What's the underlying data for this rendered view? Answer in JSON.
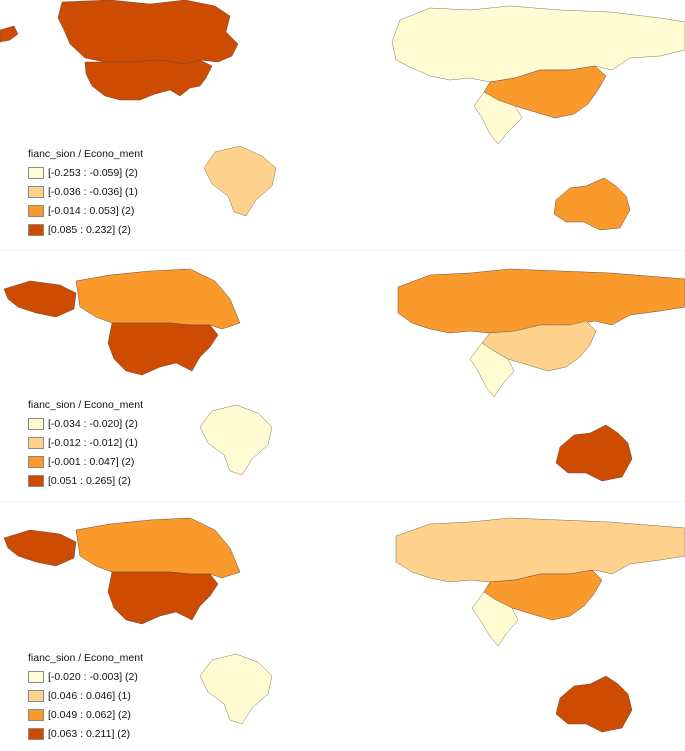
{
  "panels": [
    {
      "legend": {
        "title": "fianc_sion / Econo_ment",
        "classes": [
          {
            "label": "[-0.253 : -0.059] (2)",
            "color": "#fffbd3"
          },
          {
            "label": "[-0.036 : -0.036] (1)",
            "color": "#fed28c"
          },
          {
            "label": "[-0.014 : 0.053] (2)",
            "color": "#fb9a2c"
          },
          {
            "label": "[0.085 : 0.232] (2)",
            "color": "#cd4c02"
          }
        ]
      },
      "regions": {
        "canada": "#cd4c02",
        "usa": "#cd4c02",
        "alaska": "#cd4c02",
        "russia": "#fffbd3",
        "china": "#fb9a2c",
        "india": "#fffbd3",
        "brazil": "#fed28c",
        "australia": "#fb9a2c"
      }
    },
    {
      "legend": {
        "title": "fianc_sion / Econo_ment",
        "classes": [
          {
            "label": "[-0.034 : -0.020] (2)",
            "color": "#fffbd3"
          },
          {
            "label": "[-0.012 : -0.012] (1)",
            "color": "#fed28c"
          },
          {
            "label": "[-0.001 : 0.047] (2)",
            "color": "#fb9a2c"
          },
          {
            "label": "[0.051 : 0.265] (2)",
            "color": "#cd4c02"
          }
        ]
      },
      "regions": {
        "canada": "#fb9a2c",
        "usa": "#cd4c02",
        "alaska": "#cd4c02",
        "russia": "#fb9a2c",
        "china": "#fed28c",
        "india": "#fffbd3",
        "brazil": "#fffbd3",
        "australia": "#cd4c02"
      }
    },
    {
      "legend": {
        "title": "fianc_sion / Econo_ment",
        "classes": [
          {
            "label": "[-0.020 : -0.003] (2)",
            "color": "#fffbd3"
          },
          {
            "label": "[0.046 : 0.046] (1)",
            "color": "#fed28c"
          },
          {
            "label": "[0.049 : 0.062] (2)",
            "color": "#fb9a2c"
          },
          {
            "label": "[0.063 : 0.211] (2)",
            "color": "#cd4c02"
          }
        ]
      },
      "regions": {
        "canada": "#fb9a2c",
        "usa": "#cd4c02",
        "alaska": "#cd4c02",
        "russia": "#fed28c",
        "china": "#fb9a2c",
        "india": "#fffbd3",
        "brazil": "#fffbd3",
        "australia": "#cd4c02"
      }
    }
  ]
}
